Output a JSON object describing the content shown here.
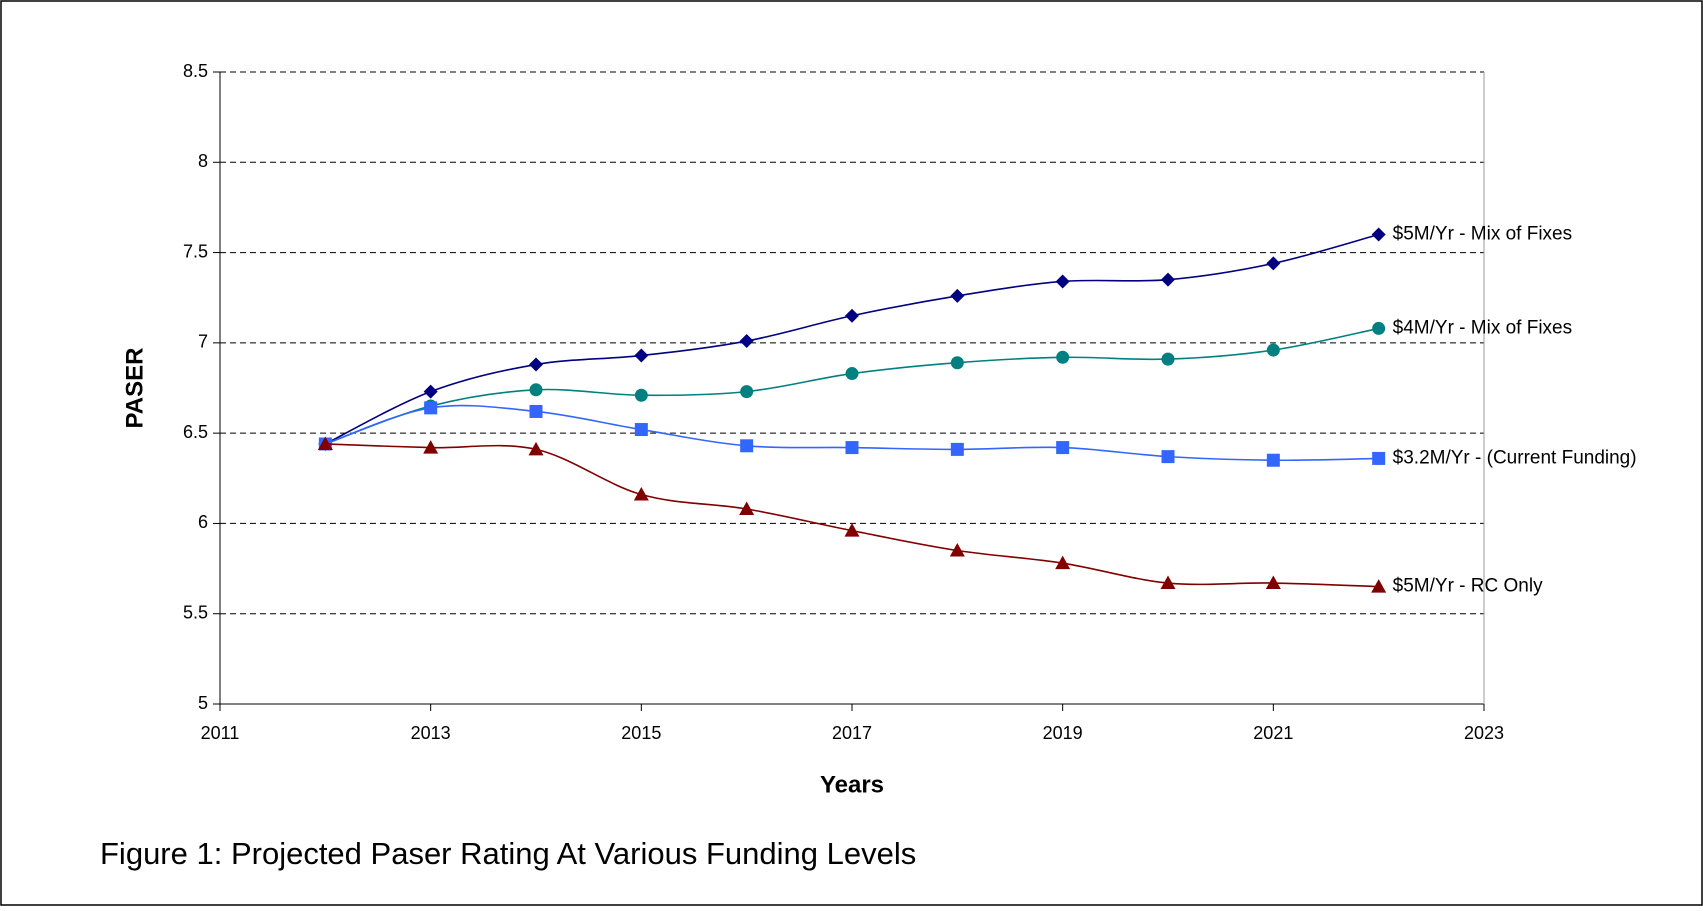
{
  "chart_data": {
    "type": "line",
    "caption": "Figure 1:  Projected Paser Rating At Various Funding Levels",
    "xlabel": "Years",
    "ylabel": "PASER",
    "x": [
      2012,
      2013,
      2014,
      2015,
      2016,
      2017,
      2018,
      2019,
      2020,
      2021,
      2022
    ],
    "series": [
      {
        "name": "$5M/Yr - Mix of Fixes",
        "color": "#000080",
        "marker": "diamond",
        "values": [
          6.44,
          6.73,
          6.88,
          6.93,
          7.01,
          7.15,
          7.26,
          7.34,
          7.35,
          7.44,
          7.6
        ]
      },
      {
        "name": "$4M/Yr - Mix of Fixes",
        "color": "#008080",
        "marker": "circle",
        "values": [
          6.44,
          6.65,
          6.74,
          6.71,
          6.73,
          6.83,
          6.89,
          6.92,
          6.91,
          6.96,
          7.08
        ]
      },
      {
        "name": "$3.2M/Yr - (Current Funding)",
        "color": "#3366ff",
        "marker": "square",
        "values": [
          6.44,
          6.64,
          6.62,
          6.52,
          6.43,
          6.42,
          6.41,
          6.42,
          6.37,
          6.35,
          6.36
        ]
      },
      {
        "name": "$5M/Yr - RC Only",
        "color": "#800000",
        "marker": "triangle",
        "values": [
          6.44,
          6.42,
          6.41,
          6.16,
          6.08,
          5.96,
          5.85,
          5.78,
          5.67,
          5.67,
          5.65
        ]
      }
    ],
    "xlim": [
      2011,
      2023
    ],
    "xticks": [
      2011,
      2013,
      2015,
      2017,
      2019,
      2021,
      2023
    ],
    "ylim": [
      5,
      8.5
    ],
    "yticks": [
      5,
      5.5,
      6,
      6.5,
      7,
      7.5,
      8,
      8.5
    ],
    "grid": true
  }
}
